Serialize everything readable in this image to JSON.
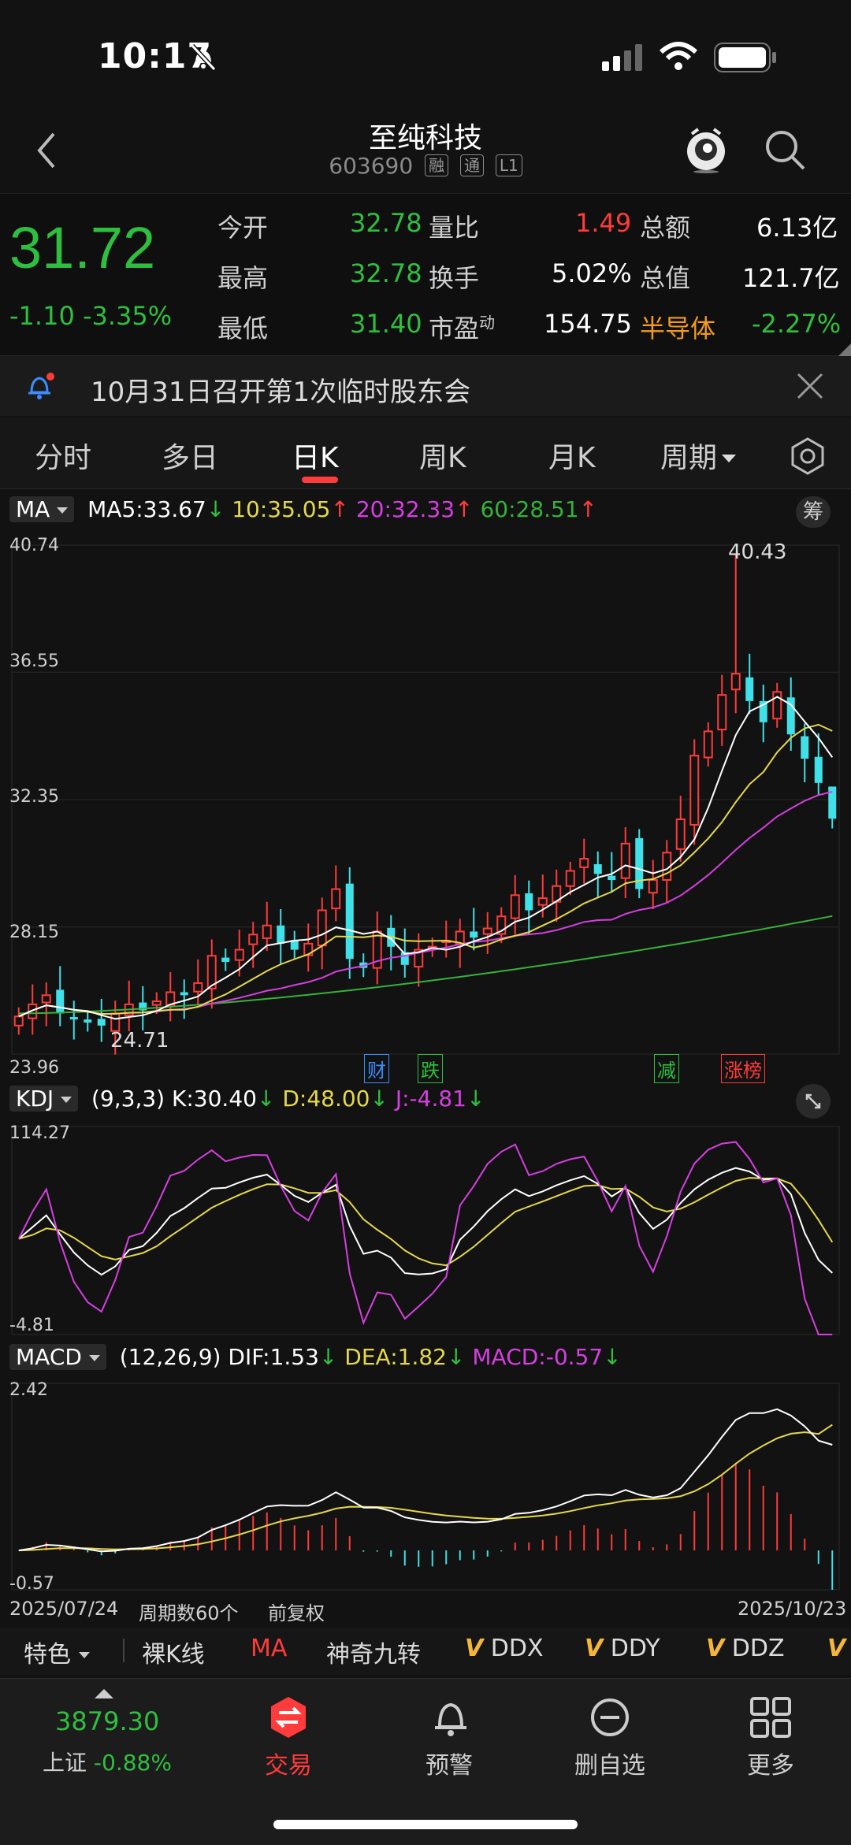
{
  "status": {
    "time": "10:17"
  },
  "header": {
    "title": "至纯科技",
    "code": "603690",
    "tags": [
      "融",
      "通",
      "L1"
    ]
  },
  "quote": {
    "price": "31.72",
    "change": "-1.10 -3.35%",
    "open_label": "今开",
    "open": "32.78",
    "high_label": "最高",
    "high": "32.78",
    "low_label": "最低",
    "low": "31.40",
    "vol_ratio_label": "量比",
    "vol_ratio": "1.49",
    "turnover_label": "换手",
    "turnover": "5.02%",
    "pe_label": "市盈",
    "pe_sup": "动",
    "pe": "154.75",
    "amount_label": "总额",
    "amount": "6.13亿",
    "mktcap_label": "总值",
    "mktcap": "121.7亿",
    "sector_label": "半导体",
    "sector_change": "-2.27%"
  },
  "notice": {
    "text": "10月31日召开第1次临时股东会"
  },
  "tabs": [
    {
      "label": "分时"
    },
    {
      "label": "多日"
    },
    {
      "label": "日K"
    },
    {
      "label": "周K"
    },
    {
      "label": "月K"
    },
    {
      "label": "周期"
    }
  ],
  "ma_legend": {
    "selector": "MA",
    "ma5": "MA5:33.67",
    "ma10": "10:35.05",
    "ma20": "20:32.33",
    "ma60": "60:28.51",
    "chip": "筹"
  },
  "kline_axis": {
    "y_labels": [
      "40.74",
      "36.55",
      "32.35",
      "28.15",
      "23.96"
    ],
    "high_mark": "40.43",
    "low_mark": "24.71"
  },
  "events": [
    {
      "label": "财"
    },
    {
      "label": "跌"
    },
    {
      "label": "减"
    },
    {
      "label": "涨榜"
    }
  ],
  "kdj_legend": {
    "selector": "KDJ",
    "params": "(9,3,3)",
    "k": "K:30.40",
    "d": "D:48.00",
    "j": "J:-4.81",
    "ymax": "114.27",
    "ymin": "-4.81"
  },
  "macd_legend": {
    "selector": "MACD",
    "params": "(12,26,9)",
    "dif": "DIF:1.53",
    "dea": "DEA:1.82",
    "macd": "MACD:-0.57",
    "ymax": "2.42",
    "ymin": "-0.57"
  },
  "footer_axis": {
    "start": "2025/07/24",
    "period": "周期数60个",
    "adjust": "前复权",
    "end": "2025/10/23"
  },
  "tools": [
    "特色",
    "裸K线",
    "MA",
    "神奇九转",
    "DDX",
    "DDY",
    "DDZ"
  ],
  "tool_v": "V",
  "nav": {
    "index_value": "3879.30",
    "index_name": "上证",
    "index_change": "-0.88%",
    "items": [
      {
        "label": "交易"
      },
      {
        "label": "预警"
      },
      {
        "label": "删自选"
      },
      {
        "label": "更多"
      }
    ]
  },
  "colors": {
    "up": "#ff3b3b",
    "down": "#3fe0e8",
    "green": "#2fbf3f",
    "ma5": "#ffffff",
    "ma10": "#e6d84a",
    "ma20": "#d63fe0",
    "ma60": "#36b23a"
  },
  "chart_data": [
    {
      "type": "candlestick",
      "title": "",
      "ylim": [
        23.96,
        40.74
      ],
      "x_range": [
        "2025/07/24",
        "2025/10/23"
      ],
      "high": 40.43,
      "low": 24.71,
      "close": [
        25.2,
        25.6,
        25.9,
        25.3,
        25.1,
        25.0,
        24.9,
        25.3,
        25.6,
        25.4,
        25.7,
        26.0,
        25.9,
        26.3,
        27.2,
        27.0,
        27.4,
        27.9,
        28.2,
        27.6,
        27.4,
        27.6,
        28.7,
        29.4,
        27.1,
        26.8,
        28.0,
        27.5,
        26.9,
        27.4,
        27.5,
        27.7,
        28.0,
        27.8,
        28.1,
        28.5,
        29.2,
        28.7,
        29.1,
        29.5,
        30.0,
        30.4,
        29.9,
        29.7,
        30.9,
        29.4,
        29.7,
        30.6,
        31.7,
        33.8,
        34.6,
        35.8,
        36.5,
        35.6,
        34.9,
        35.9,
        34.5,
        33.7,
        32.9,
        31.72
      ],
      "ma5_last": 33.67,
      "ma10_last": 35.05,
      "ma20_last": 32.33,
      "ma60_last": 28.51
    },
    {
      "type": "line",
      "title": "",
      "ylim": [
        -4.81,
        114.27
      ],
      "series": [
        {
          "name": "K",
          "last": 30.4
        },
        {
          "name": "D",
          "last": 48.0
        },
        {
          "name": "J",
          "last": -4.81
        }
      ]
    },
    {
      "type": "bar",
      "title": "",
      "ylim": [
        -0.57,
        2.42
      ],
      "series": [
        {
          "name": "DIF",
          "last": 1.53
        },
        {
          "name": "DEA",
          "last": 1.82
        },
        {
          "name": "MACD",
          "last": -0.57
        }
      ]
    }
  ]
}
